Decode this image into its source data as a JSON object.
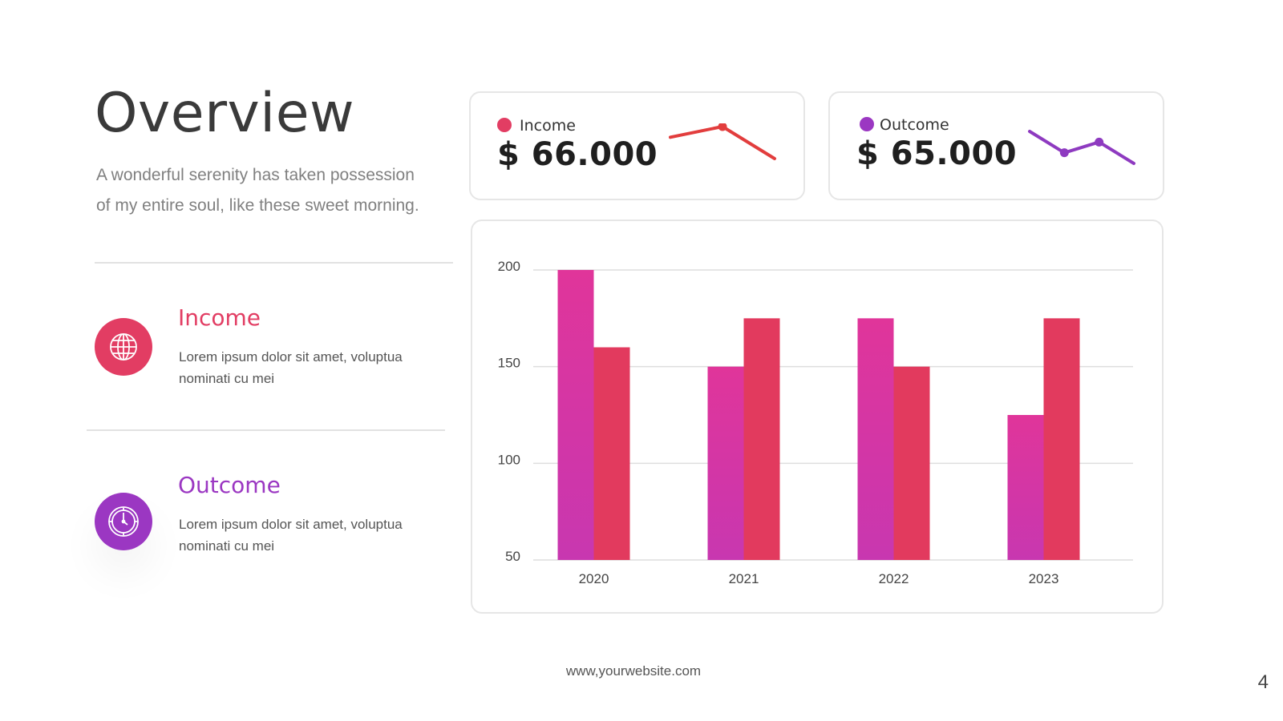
{
  "header": {
    "title": "Overview",
    "description": "A wonderful serenity has taken possession of my entire soul, like these sweet morning."
  },
  "features": [
    {
      "title": "Income",
      "text": "Lorem ipsum dolor sit amet, voluptua nominati cu mei",
      "icon": "globe-icon",
      "color": "#e23d63"
    },
    {
      "title": "Outcome",
      "text": "Lorem ipsum dolor sit amet, voluptua nominati cu mei",
      "icon": "clock-icon",
      "color": "#9b37c2"
    }
  ],
  "kpis": [
    {
      "label": "Income",
      "value": "$ 66.000",
      "dot_color": "#e23d63",
      "line_color": "#e23d3d",
      "trend": [
        2,
        3,
        0
      ],
      "highlight_index": 1
    },
    {
      "label": "Outcome",
      "value": "$ 65.000",
      "dot_color": "#9b37c2",
      "line_color": "#8e3ac0",
      "trend": [
        3,
        1,
        2,
        0
      ],
      "highlight_index": [
        1,
        2
      ]
    }
  ],
  "chart_data": {
    "type": "bar",
    "categories": [
      "2020",
      "2021",
      "2022",
      "2023"
    ],
    "series": [
      {
        "values": [
          200,
          150,
          175,
          125
        ],
        "color_top": "#e0359a",
        "color_bottom": "#c837b0"
      },
      {
        "values": [
          160,
          175,
          150,
          175
        ],
        "color": "#e23a5e"
      }
    ],
    "y_ticks": [
      "200",
      "150",
      "100",
      "50"
    ],
    "ylim": [
      50,
      200
    ],
    "grid": true
  },
  "footer": {
    "website": "www,yourwebsite.com",
    "page_number": "4"
  }
}
